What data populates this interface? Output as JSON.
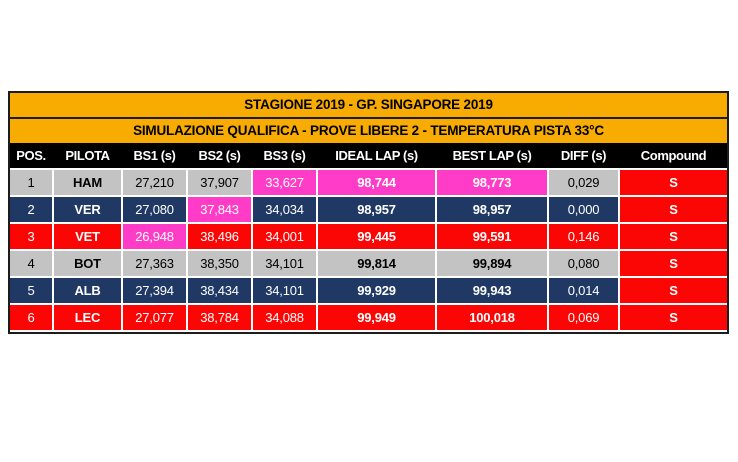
{
  "table": {
    "titles": [
      "STAGIONE 2019 - GP. SINGAPORE 2019",
      "SIMULAZIONE QUALIFICA - PROVE LIBERE 2 - TEMPERATURA PISTA 33°C"
    ],
    "columns": [
      "POS.",
      "PILOTA",
      "BS1 (s)",
      "BS2 (s)",
      "BS3 (s)",
      "IDEAL LAP (s)",
      "BEST LAP (s)",
      "DIFF (s)",
      "Compound"
    ],
    "rows": [
      {
        "pos": "1",
        "driver": "HAM",
        "bs1": "27,210",
        "bs2": "37,907",
        "bs3": "33,627",
        "ideal": "98,744",
        "best": "98,773",
        "diff": "0,029",
        "compound": "S",
        "row_color": "gray",
        "highlight_cells": [
          "bs3",
          "ideal",
          "best"
        ]
      },
      {
        "pos": "2",
        "driver": "VER",
        "bs1": "27,080",
        "bs2": "37,843",
        "bs3": "34,034",
        "ideal": "98,957",
        "best": "98,957",
        "diff": "0,000",
        "compound": "S",
        "row_color": "navy",
        "highlight_cells": [
          "bs2"
        ]
      },
      {
        "pos": "3",
        "driver": "VET",
        "bs1": "26,948",
        "bs2": "38,496",
        "bs3": "34,001",
        "ideal": "99,445",
        "best": "99,591",
        "diff": "0,146",
        "compound": "S",
        "row_color": "red",
        "highlight_cells": [
          "bs1"
        ]
      },
      {
        "pos": "4",
        "driver": "BOT",
        "bs1": "27,363",
        "bs2": "38,350",
        "bs3": "34,101",
        "ideal": "99,814",
        "best": "99,894",
        "diff": "0,080",
        "compound": "S",
        "row_color": "gray",
        "highlight_cells": []
      },
      {
        "pos": "5",
        "driver": "ALB",
        "bs1": "27,394",
        "bs2": "38,434",
        "bs3": "34,101",
        "ideal": "99,929",
        "best": "99,943",
        "diff": "0,014",
        "compound": "S",
        "row_color": "navy",
        "highlight_cells": []
      },
      {
        "pos": "6",
        "driver": "LEC",
        "bs1": "27,077",
        "bs2": "38,784",
        "bs3": "34,088",
        "ideal": "99,949",
        "best": "100,018",
        "diff": "0,069",
        "compound": "S",
        "row_color": "red",
        "highlight_cells": []
      }
    ],
    "colors": {
      "title_bg": "#F8AB00",
      "header_bg": "#000000",
      "row_gray": "#C3C3C3",
      "row_navy": "#1F3864",
      "row_red": "#FB0505",
      "highlight_magenta": "#FF3CC7",
      "compound_red": "#FB0505",
      "border_dark": "#1c1c1c"
    }
  }
}
